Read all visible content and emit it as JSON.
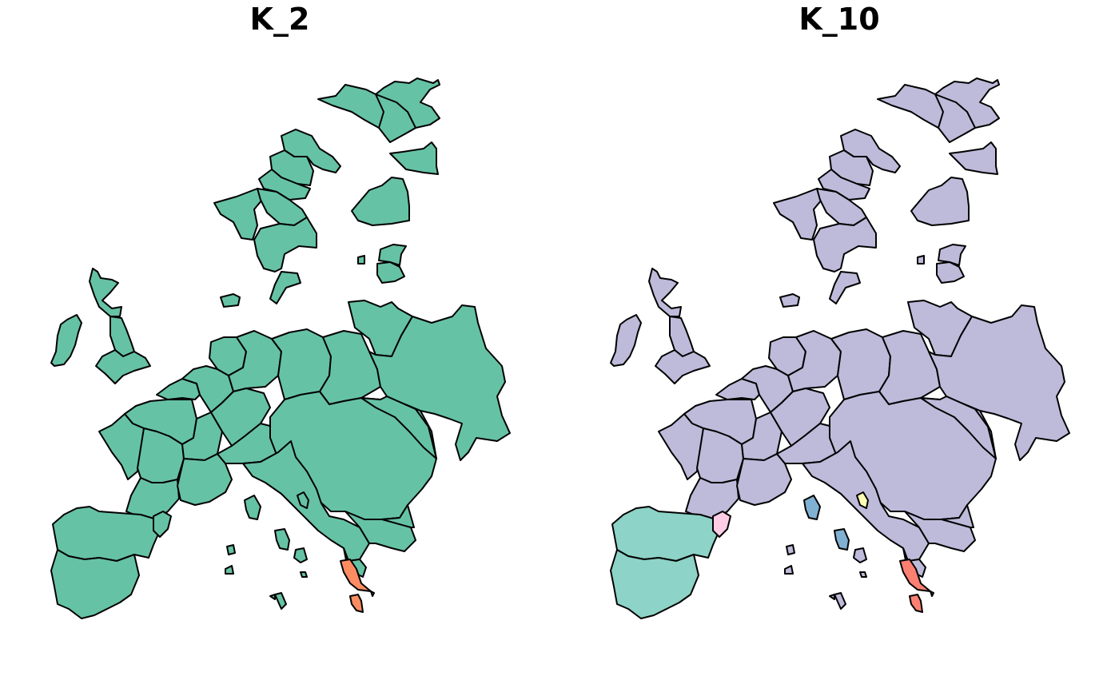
{
  "panels": [
    {
      "title": "K_2",
      "colors": {
        "base": "#66c2a5",
        "iberia": "#66c2a5",
        "iberia_border": "#66c2a5",
        "balkan_small": "#fc8d62",
        "aegean": "#fc8d62",
        "corsica": "#66c2a5",
        "italy_small": "#66c2a5",
        "sardinia": "#66c2a5"
      }
    },
    {
      "title": "K_10",
      "colors": {
        "base": "#bebada",
        "iberia": "#8dd3c7",
        "iberia_border": "#fccde5",
        "balkan_small": "#fb8072",
        "aegean": "#fb8072",
        "corsica": "#80b1d3",
        "italy_small": "#ffffb3",
        "sardinia": "#80b1d3"
      }
    }
  ]
}
